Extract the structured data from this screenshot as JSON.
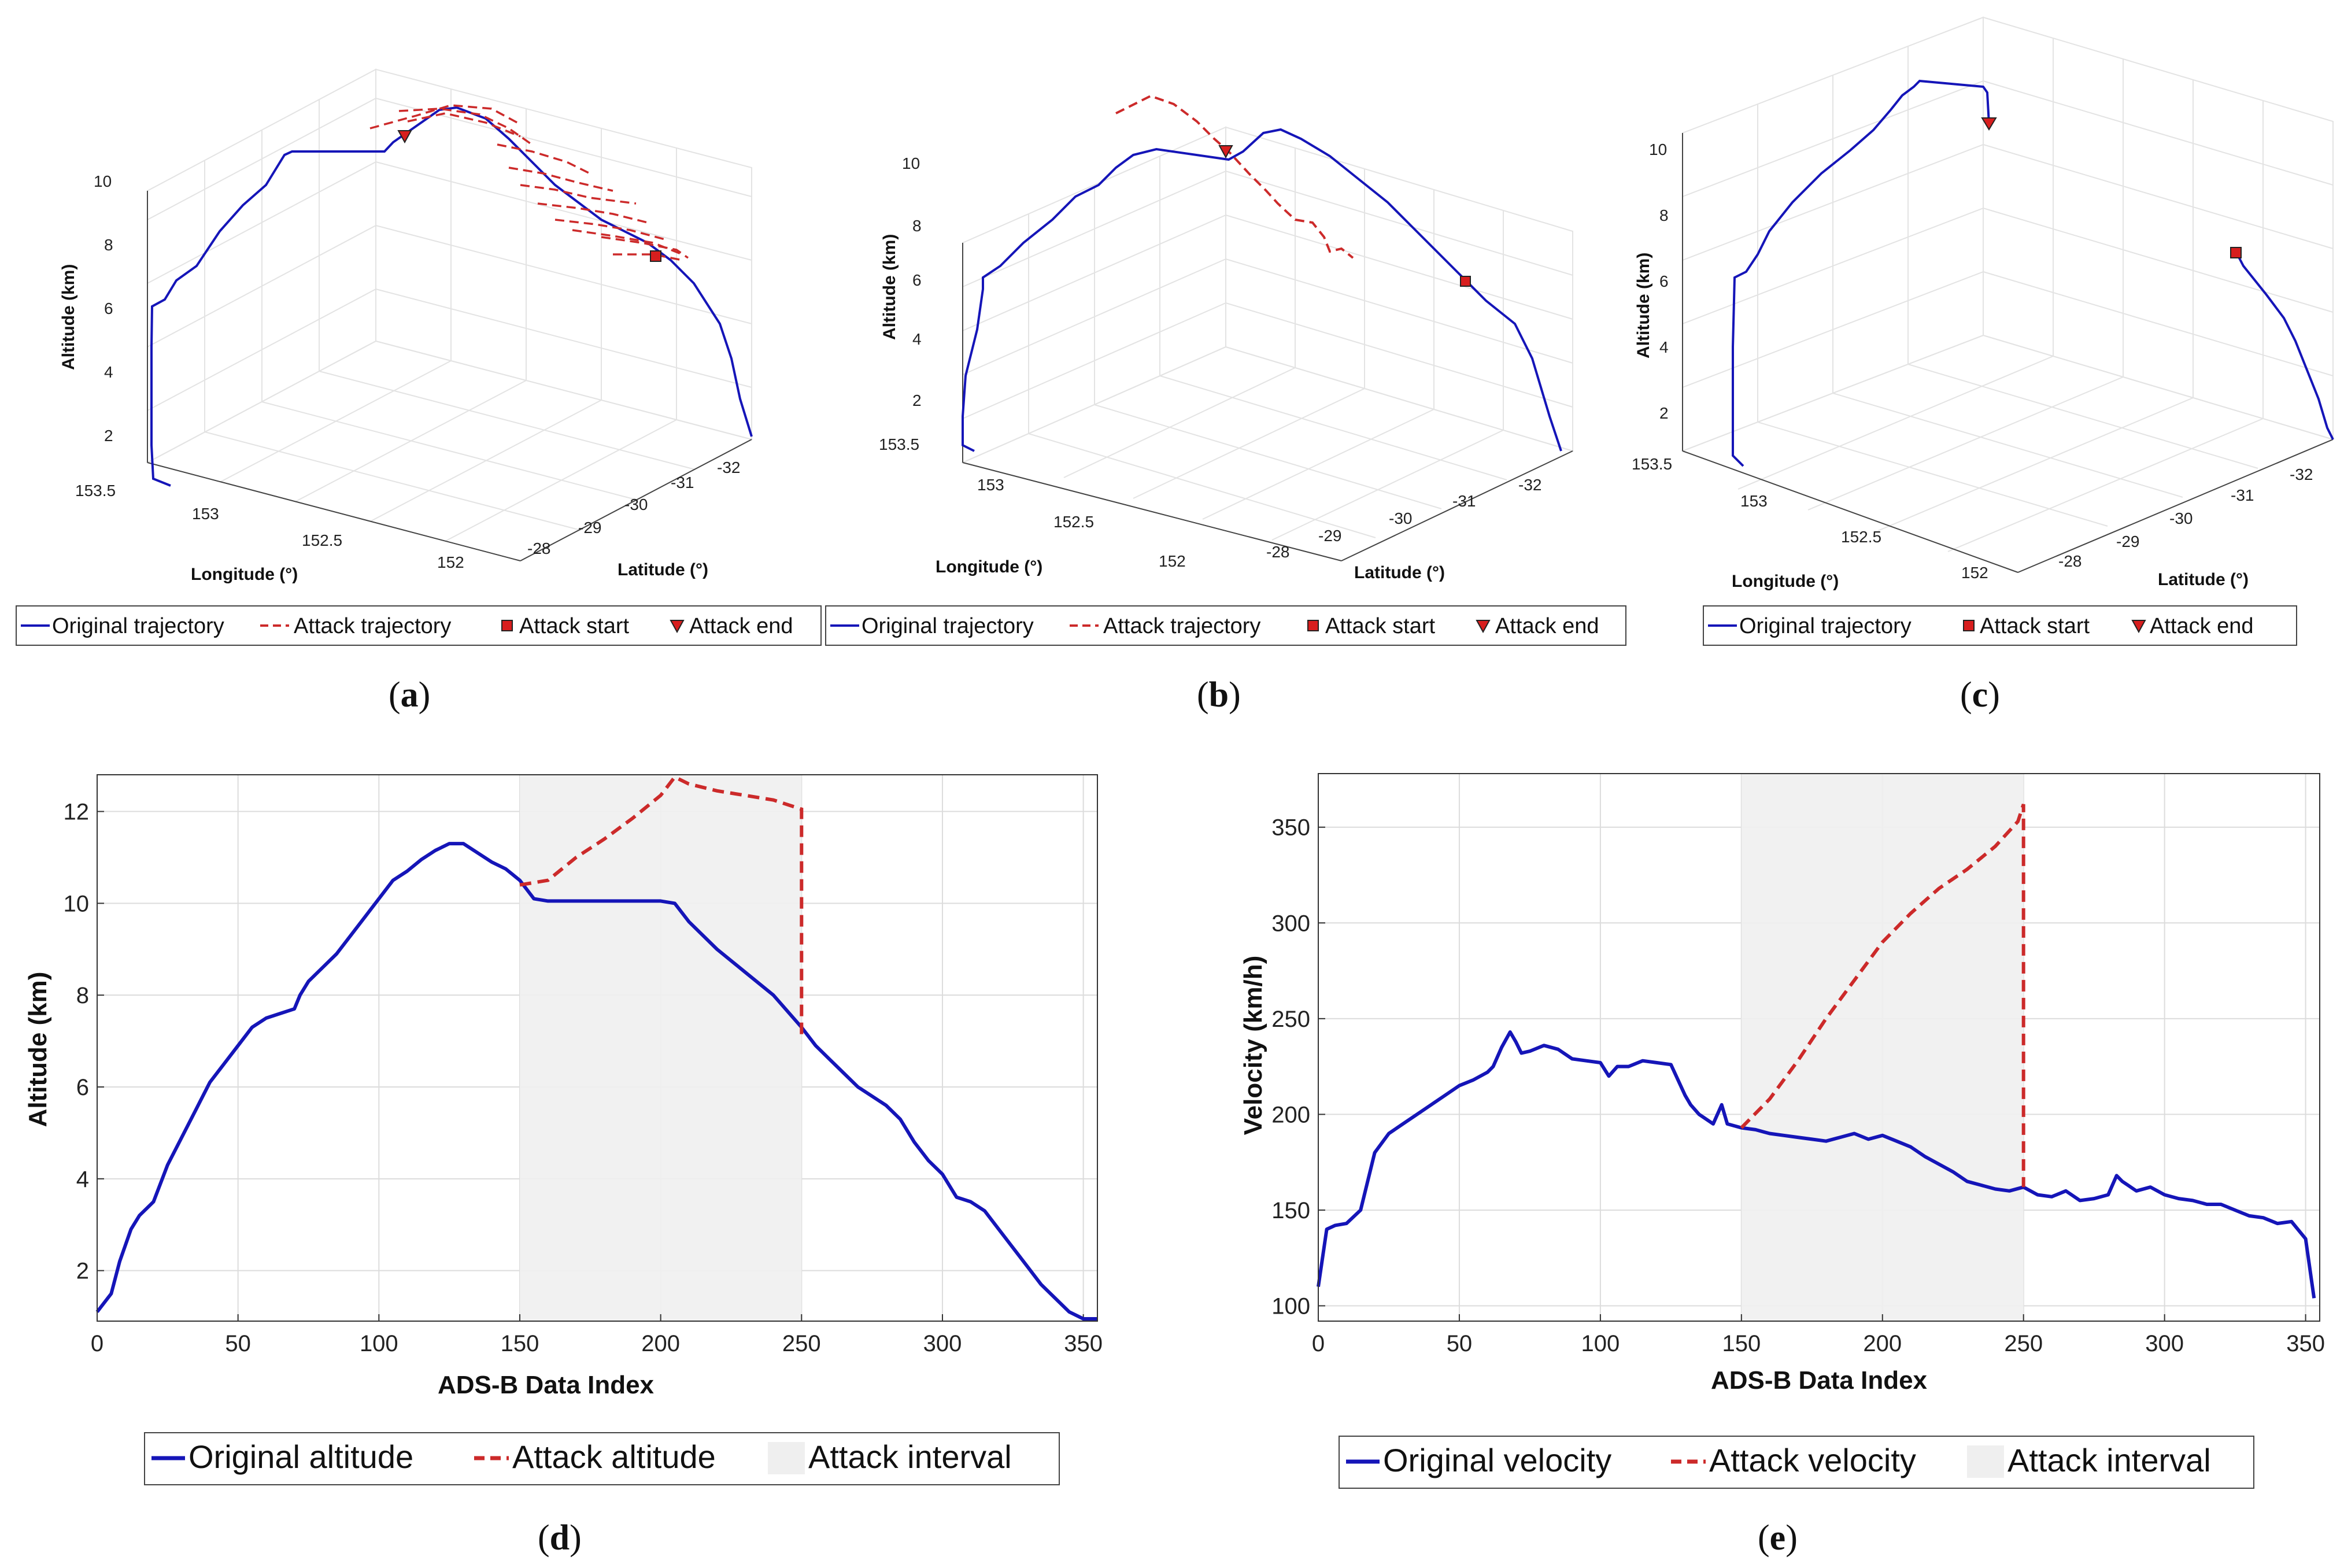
{
  "colors": {
    "original": "#1515b8",
    "attack": "#cc2a2a",
    "interval": "#efefef",
    "marker": "#d81e1e"
  },
  "chart_data": [
    {
      "id": "a",
      "type": "line3d",
      "panel_label": "a",
      "xlabel": "Longitude (°)",
      "ylabel": "Latitude (°)",
      "zlabel": "Altitude (km)",
      "x_ticks": [
        "153.5",
        "153",
        "152.5",
        "152"
      ],
      "y_ticks": [
        "-28",
        "-29",
        "-30",
        "-31",
        "-32"
      ],
      "z_ticks": [
        "2",
        "4",
        "6",
        "8",
        "10"
      ],
      "legend": [
        "Original trajectory",
        "Attack trajectory",
        "Attack start",
        "Attack end"
      ],
      "attack_style": "scattered"
    },
    {
      "id": "b",
      "type": "line3d",
      "panel_label": "b",
      "xlabel": "Longitude (°)",
      "ylabel": "Latitude (°)",
      "zlabel": "Altitude (km)",
      "x_ticks": [
        "153.5",
        "153",
        "152.5",
        "152"
      ],
      "y_ticks": [
        "-28",
        "-29",
        "-30",
        "-31",
        "-32"
      ],
      "z_ticks": [
        "2",
        "4",
        "6",
        "8",
        "10"
      ],
      "legend": [
        "Original trajectory",
        "Attack trajectory",
        "Attack start",
        "Attack end"
      ],
      "attack_style": "curve"
    },
    {
      "id": "c",
      "type": "line3d",
      "panel_label": "c",
      "xlabel": "Longitude (°)",
      "ylabel": "Latitude (°)",
      "zlabel": "Altitude (km)",
      "x_ticks": [
        "153.5",
        "153",
        "152.5",
        "152"
      ],
      "y_ticks": [
        "-28",
        "-29",
        "-30",
        "-31",
        "-32"
      ],
      "z_ticks": [
        "2",
        "4",
        "6",
        "8",
        "10"
      ],
      "legend": [
        "Original trajectory",
        "Attack start",
        "Attack end"
      ],
      "attack_style": "gap"
    },
    {
      "id": "d",
      "type": "line",
      "panel_label": "d",
      "xlabel": "ADS-B Data Index",
      "ylabel": "Altitude (km)",
      "xlim": [
        0,
        355
      ],
      "ylim": [
        0.9,
        12.8
      ],
      "x_ticks": [
        0,
        50,
        100,
        150,
        200,
        250,
        300,
        350
      ],
      "y_ticks": [
        2,
        4,
        6,
        8,
        10,
        12
      ],
      "attack_interval": [
        150,
        250
      ],
      "legend": [
        "Original altitude",
        "Attack altitude",
        "Attack interval"
      ],
      "series": [
        {
          "name": "Original altitude",
          "x": [
            0,
            5,
            8,
            12,
            15,
            20,
            25,
            30,
            35,
            40,
            45,
            50,
            55,
            60,
            65,
            70,
            72,
            75,
            80,
            85,
            90,
            95,
            100,
            105,
            110,
            115,
            120,
            125,
            130,
            135,
            140,
            145,
            150,
            155,
            160,
            165,
            170,
            180,
            190,
            200,
            205,
            210,
            220,
            230,
            240,
            250,
            255,
            260,
            265,
            270,
            275,
            280,
            285,
            290,
            295,
            300,
            305,
            310,
            315,
            320,
            325,
            330,
            335,
            340,
            345,
            350,
            355
          ],
          "y": [
            1.1,
            1.5,
            2.2,
            2.9,
            3.2,
            3.5,
            4.3,
            4.9,
            5.5,
            6.1,
            6.5,
            6.9,
            7.3,
            7.5,
            7.6,
            7.7,
            8.0,
            8.3,
            8.6,
            8.9,
            9.3,
            9.7,
            10.1,
            10.5,
            10.7,
            10.95,
            11.15,
            11.3,
            11.3,
            11.1,
            10.9,
            10.75,
            10.5,
            10.1,
            10.05,
            10.05,
            10.05,
            10.05,
            10.05,
            10.05,
            10.0,
            9.6,
            9.0,
            8.5,
            8.0,
            7.3,
            6.9,
            6.6,
            6.3,
            6.0,
            5.8,
            5.6,
            5.3,
            4.8,
            4.4,
            4.1,
            3.6,
            3.5,
            3.3,
            2.9,
            2.5,
            2.1,
            1.7,
            1.4,
            1.1,
            0.95,
            0.95
          ]
        },
        {
          "name": "Attack altitude",
          "x": [
            150,
            160,
            170,
            180,
            190,
            200,
            205,
            210,
            220,
            230,
            240,
            250,
            250
          ],
          "y": [
            10.4,
            10.5,
            11.0,
            11.4,
            11.85,
            12.35,
            12.75,
            12.6,
            12.45,
            12.35,
            12.25,
            12.05,
            7.1
          ]
        }
      ]
    },
    {
      "id": "e",
      "type": "line",
      "panel_label": "e",
      "xlabel": "ADS-B Data Index",
      "ylabel": "Velocity (km/h)",
      "xlim": [
        0,
        355
      ],
      "ylim": [
        92,
        378
      ],
      "x_ticks": [
        0,
        50,
        100,
        150,
        200,
        250,
        300,
        350
      ],
      "y_ticks": [
        100,
        150,
        200,
        250,
        300,
        350
      ],
      "attack_interval": [
        150,
        250
      ],
      "legend": [
        "Original velocity",
        "Attack velocity",
        "Attack interval"
      ],
      "series": [
        {
          "name": "Original velocity",
          "x": [
            0,
            3,
            6,
            10,
            15,
            20,
            25,
            30,
            35,
            40,
            45,
            50,
            55,
            60,
            62,
            65,
            68,
            70,
            72,
            75,
            80,
            85,
            90,
            95,
            100,
            103,
            106,
            110,
            115,
            120,
            125,
            130,
            132,
            135,
            140,
            143,
            145,
            150,
            155,
            160,
            165,
            170,
            175,
            180,
            185,
            190,
            195,
            200,
            205,
            210,
            215,
            220,
            225,
            230,
            235,
            240,
            245,
            250,
            255,
            260,
            265,
            270,
            275,
            280,
            283,
            285,
            290,
            295,
            300,
            305,
            310,
            315,
            320,
            325,
            330,
            335,
            340,
            345,
            350,
            353
          ],
          "y": [
            110,
            140,
            142,
            143,
            150,
            180,
            190,
            195,
            200,
            205,
            210,
            215,
            218,
            222,
            225,
            235,
            243,
            238,
            232,
            233,
            236,
            234,
            229,
            228,
            227,
            220,
            225,
            225,
            228,
            227,
            226,
            210,
            205,
            200,
            195,
            205,
            195,
            193,
            192,
            190,
            189,
            188,
            187,
            186,
            188,
            190,
            187,
            189,
            186,
            183,
            178,
            174,
            170,
            165,
            163,
            161,
            160,
            162,
            158,
            157,
            160,
            155,
            156,
            158,
            168,
            165,
            160,
            162,
            158,
            156,
            155,
            153,
            153,
            150,
            147,
            146,
            143,
            144,
            135,
            104
          ]
        },
        {
          "name": "Attack velocity",
          "x": [
            150,
            160,
            170,
            180,
            190,
            200,
            210,
            220,
            230,
            240,
            248,
            250,
            250
          ],
          "y": [
            193,
            208,
            228,
            250,
            270,
            290,
            305,
            318,
            328,
            340,
            353,
            362,
            162
          ]
        }
      ]
    }
  ]
}
